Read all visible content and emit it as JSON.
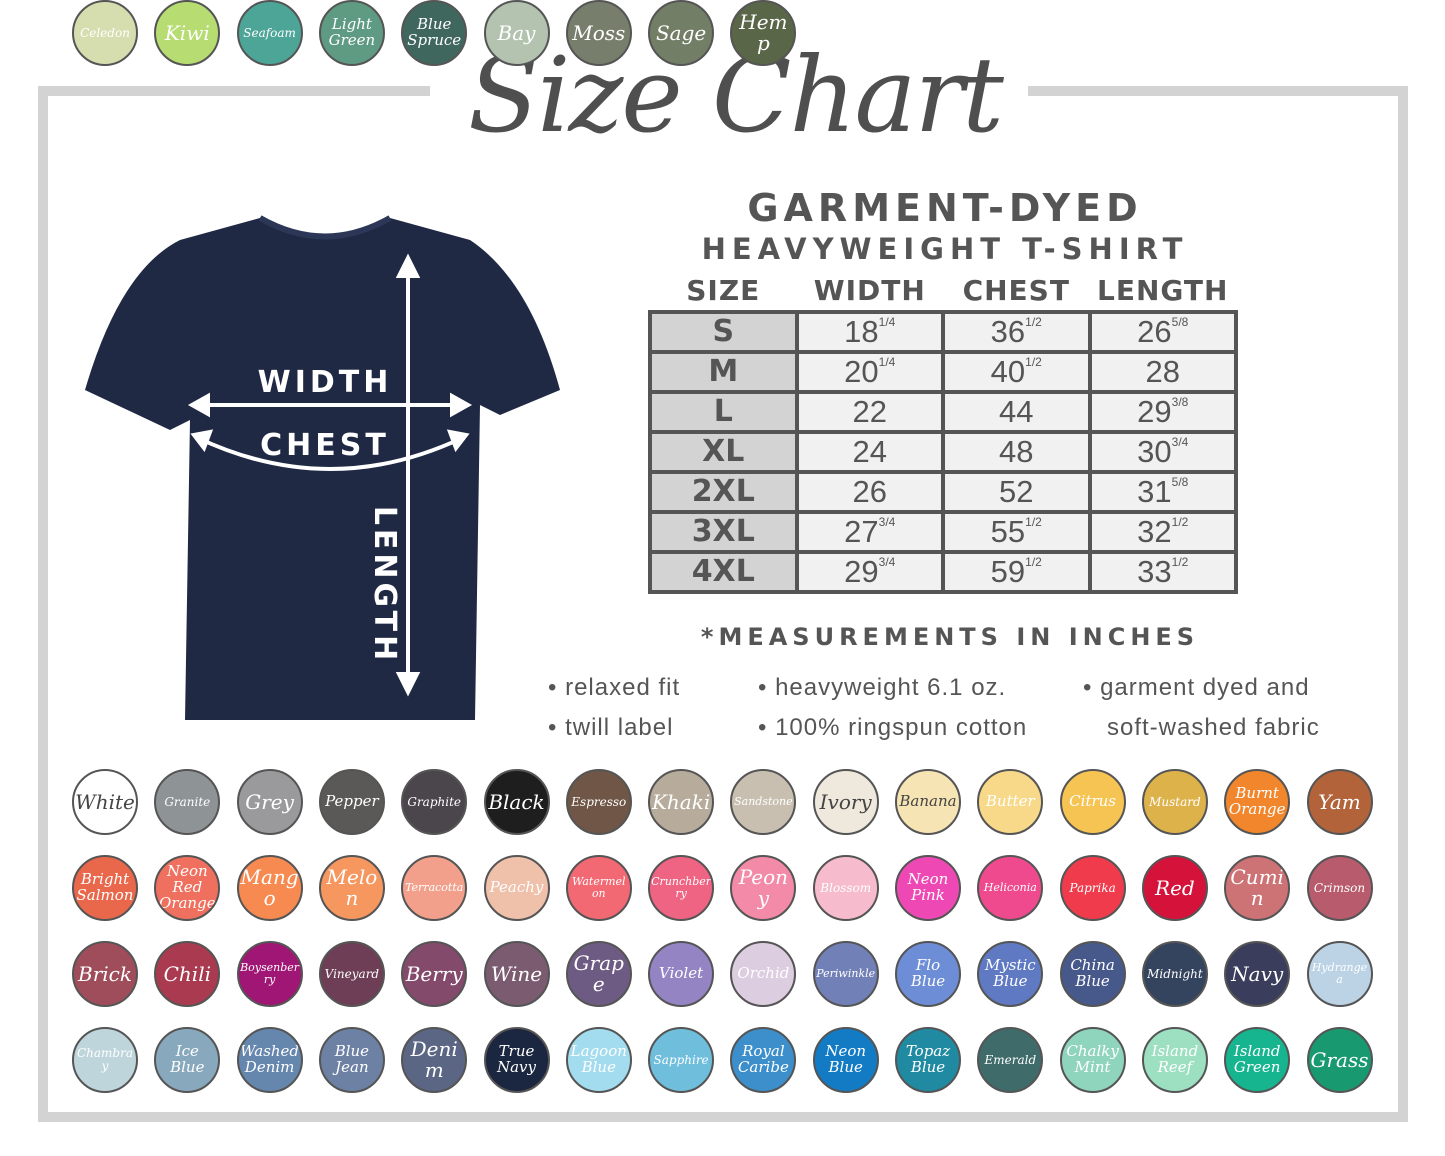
{
  "title": "Size Chart",
  "product": {
    "line1": "GARMENT-DYED",
    "line2": "HEAVYWEIGHT T-SHIRT"
  },
  "shirt_labels": {
    "width": "WIDTH",
    "chest": "CHEST",
    "length": "LENGTH"
  },
  "shirt_color": "#1f2944",
  "table": {
    "headers": [
      "SIZE",
      "WIDTH",
      "CHEST",
      "LENGTH"
    ],
    "rows": [
      {
        "size": "S",
        "width": [
          "18",
          "1/4"
        ],
        "chest": [
          "36",
          "1/2"
        ],
        "length": [
          "26",
          "5/8"
        ]
      },
      {
        "size": "M",
        "width": [
          "20",
          "1/4"
        ],
        "chest": [
          "40",
          "1/2"
        ],
        "length": [
          "28",
          ""
        ]
      },
      {
        "size": "L",
        "width": [
          "22",
          ""
        ],
        "chest": [
          "44",
          ""
        ],
        "length": [
          "29",
          "3/8"
        ]
      },
      {
        "size": "XL",
        "width": [
          "24",
          ""
        ],
        "chest": [
          "48",
          ""
        ],
        "length": [
          "30",
          "3/4"
        ]
      },
      {
        "size": "2XL",
        "width": [
          "26",
          ""
        ],
        "chest": [
          "52",
          ""
        ],
        "length": [
          "31",
          "5/8"
        ]
      },
      {
        "size": "3XL",
        "width": [
          "27",
          "3/4"
        ],
        "chest": [
          "55",
          "1/2"
        ],
        "length": [
          "32",
          "1/2"
        ]
      },
      {
        "size": "4XL",
        "width": [
          "29",
          "3/4"
        ],
        "chest": [
          "59",
          "1/2"
        ],
        "length": [
          "33",
          "1/2"
        ]
      }
    ]
  },
  "note": "*MEASUREMENTS IN INCHES",
  "features": [
    "• relaxed fit",
    "• twill label",
    "• heavyweight 6.1 oz.",
    "• 100% ringspun cotton",
    "• garment dyed and",
    "soft-washed fabric"
  ],
  "swatches": [
    {
      "name": "White",
      "color": "#ffffff",
      "dark": true
    },
    {
      "name": "Granite",
      "color": "#8e9396"
    },
    {
      "name": "Grey",
      "color": "#9a9a9c"
    },
    {
      "name": "Pepper",
      "color": "#5b5957"
    },
    {
      "name": "Graphite",
      "color": "#4a464b"
    },
    {
      "name": "Black",
      "color": "#1e1e1e"
    },
    {
      "name": "Espresso",
      "color": "#6f5646"
    },
    {
      "name": "Khaki",
      "color": "#b7ac9b"
    },
    {
      "name": "Sandstone",
      "color": "#c8bfb1"
    },
    {
      "name": "Ivory",
      "color": "#efe8dc",
      "dark": true
    },
    {
      "name": "Banana",
      "color": "#f7e4b4",
      "dark": true
    },
    {
      "name": "Butter",
      "color": "#f8d98a"
    },
    {
      "name": "Citrus",
      "color": "#f6c453"
    },
    {
      "name": "Mustard",
      "color": "#deb24b"
    },
    {
      "name": "Burnt Orange",
      "color": "#f2862c"
    },
    {
      "name": "Yam",
      "color": "#b2633a"
    },
    {
      "name": "Bright Salmon",
      "color": "#e9684c"
    },
    {
      "name": "Neon Red Orange",
      "color": "#f0705f"
    },
    {
      "name": "Mango",
      "color": "#f78a50"
    },
    {
      "name": "Melon",
      "color": "#f6975f"
    },
    {
      "name": "Terracotta",
      "color": "#f2a08b"
    },
    {
      "name": "Peachy",
      "color": "#efc0aa"
    },
    {
      "name": "Watermelon",
      "color": "#f26873"
    },
    {
      "name": "Crunchberry",
      "color": "#ef6383"
    },
    {
      "name": "Peony",
      "color": "#f28aa8"
    },
    {
      "name": "Blossom",
      "color": "#f6bccd"
    },
    {
      "name": "Neon Pink",
      "color": "#ee48b4"
    },
    {
      "name": "Heliconia",
      "color": "#ef4a8e"
    },
    {
      "name": "Paprika",
      "color": "#ef3b4c"
    },
    {
      "name": "Red",
      "color": "#d5133a"
    },
    {
      "name": "Cumin",
      "color": "#cd7376"
    },
    {
      "name": "Crimson",
      "color": "#b75b6d"
    },
    {
      "name": "Brick",
      "color": "#a04d5b"
    },
    {
      "name": "Chili",
      "color": "#a93a4f"
    },
    {
      "name": "Boysenberry",
      "color": "#a01674"
    },
    {
      "name": "Vineyard",
      "color": "#6d3e55"
    },
    {
      "name": "Berry",
      "color": "#844a6c"
    },
    {
      "name": "Wine",
      "color": "#7a5b70"
    },
    {
      "name": "Grape",
      "color": "#6e5b83"
    },
    {
      "name": "Violet",
      "color": "#9584c4"
    },
    {
      "name": "Orchid",
      "color": "#dccde0"
    },
    {
      "name": "Periwinkle",
      "color": "#7280b8"
    },
    {
      "name": "Flo Blue",
      "color": "#6d8ed6"
    },
    {
      "name": "Mystic Blue",
      "color": "#5f79c2"
    },
    {
      "name": "China Blue",
      "color": "#47598a"
    },
    {
      "name": "Midnight",
      "color": "#34445f"
    },
    {
      "name": "Navy",
      "color": "#3a3d5b"
    },
    {
      "name": "Hydrangea",
      "color": "#bcd2e5"
    },
    {
      "name": "Chambray",
      "color": "#bfd5dc"
    },
    {
      "name": "Ice Blue",
      "color": "#88a9bd"
    },
    {
      "name": "Washed Denim",
      "color": "#6586ad"
    },
    {
      "name": "Blue Jean",
      "color": "#6d81a4"
    },
    {
      "name": "Denim",
      "color": "#5a6684"
    },
    {
      "name": "True Navy",
      "color": "#1b2640"
    },
    {
      "name": "Lagoon Blue",
      "color": "#a2dcee"
    },
    {
      "name": "Sapphire",
      "color": "#6ebedc"
    },
    {
      "name": "Royal Caribe",
      "color": "#3c8fcb"
    },
    {
      "name": "Neon Blue",
      "color": "#137bc4"
    },
    {
      "name": "Topaz Blue",
      "color": "#1f8aa2"
    },
    {
      "name": "Emerald",
      "color": "#3f6b6b"
    },
    {
      "name": "Chalky Mint",
      "color": "#8fd4bd"
    },
    {
      "name": "Island Reef",
      "color": "#9de0c1"
    },
    {
      "name": "Island Green",
      "color": "#17b58f"
    },
    {
      "name": "Grass",
      "color": "#19996f"
    },
    {
      "name": "Celedon",
      "color": "#d6deb0"
    },
    {
      "name": "Kiwi",
      "color": "#b6dc72"
    },
    {
      "name": "Seafoam",
      "color": "#4da598"
    },
    {
      "name": "Light Green",
      "color": "#5e9b82"
    },
    {
      "name": "Blue Spruce",
      "color": "#40675e"
    },
    {
      "name": "Bay",
      "color": "#b4c3b0"
    },
    {
      "name": "Moss",
      "color": "#777f6c"
    },
    {
      "name": "Sage",
      "color": "#737e66"
    },
    {
      "name": "Hemp",
      "color": "#5a6648"
    }
  ]
}
